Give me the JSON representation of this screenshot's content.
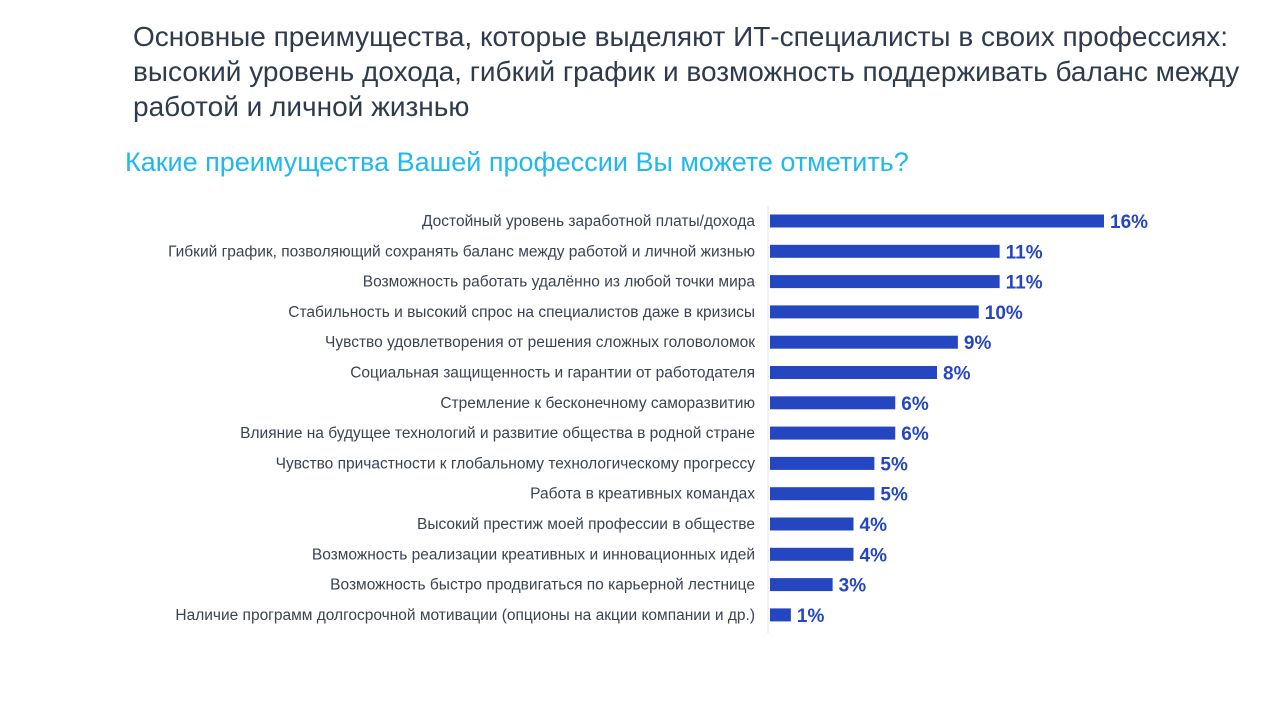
{
  "page": {
    "headline": "Основные преимущества, которые выделяют ИТ-специалисты в своих профессиях: высокий уровень дохода, гибкий график и возможность поддерживать баланс между работой и личной жизнью",
    "subtitle": "Какие преимущества Вашей профессии Вы можете отметить?"
  },
  "colors": {
    "bar": "#2446c0",
    "subtitle": "#1fb8ef",
    "headline": "#2f3a4d",
    "axis": "#e1e3ea"
  },
  "chart_data": {
    "type": "bar",
    "orientation": "horizontal",
    "title": "Какие преимущества Вашей профессии Вы можете отметить?",
    "xlabel": "",
    "ylabel": "",
    "value_suffix": "%",
    "grid": false,
    "legend": "none",
    "xlim": [
      0,
      16
    ],
    "categories": [
      "Достойный уровень заработной платы/дохода",
      "Гибкий график, позволяющий сохранять баланс между работой и личной жизнью",
      "Возможность работать удалённо из любой точки мира",
      "Стабильность и высокий спрос на специалистов даже в кризисы",
      "Чувство удовлетворения от решения сложных головоломок",
      "Социальная защищенность и гарантии от работодателя",
      "Стремление к бесконечному саморазвитию",
      "Влияние на будущее технологий и развитие общества в родной стране",
      "Чувство причастности к глобальному технологическому прогрессу",
      "Работа в креативных командах",
      "Высокий престиж моей профессии в обществе",
      "Возможность реализации креативных и инновационных идей",
      "Возможность быстро продвигаться по карьерной лестнице",
      "Наличие программ долгосрочной мотивации (опционы на акции компании и др.)"
    ],
    "values": [
      16,
      11,
      11,
      10,
      9,
      8,
      6,
      6,
      5,
      5,
      4,
      4,
      3,
      1
    ]
  }
}
